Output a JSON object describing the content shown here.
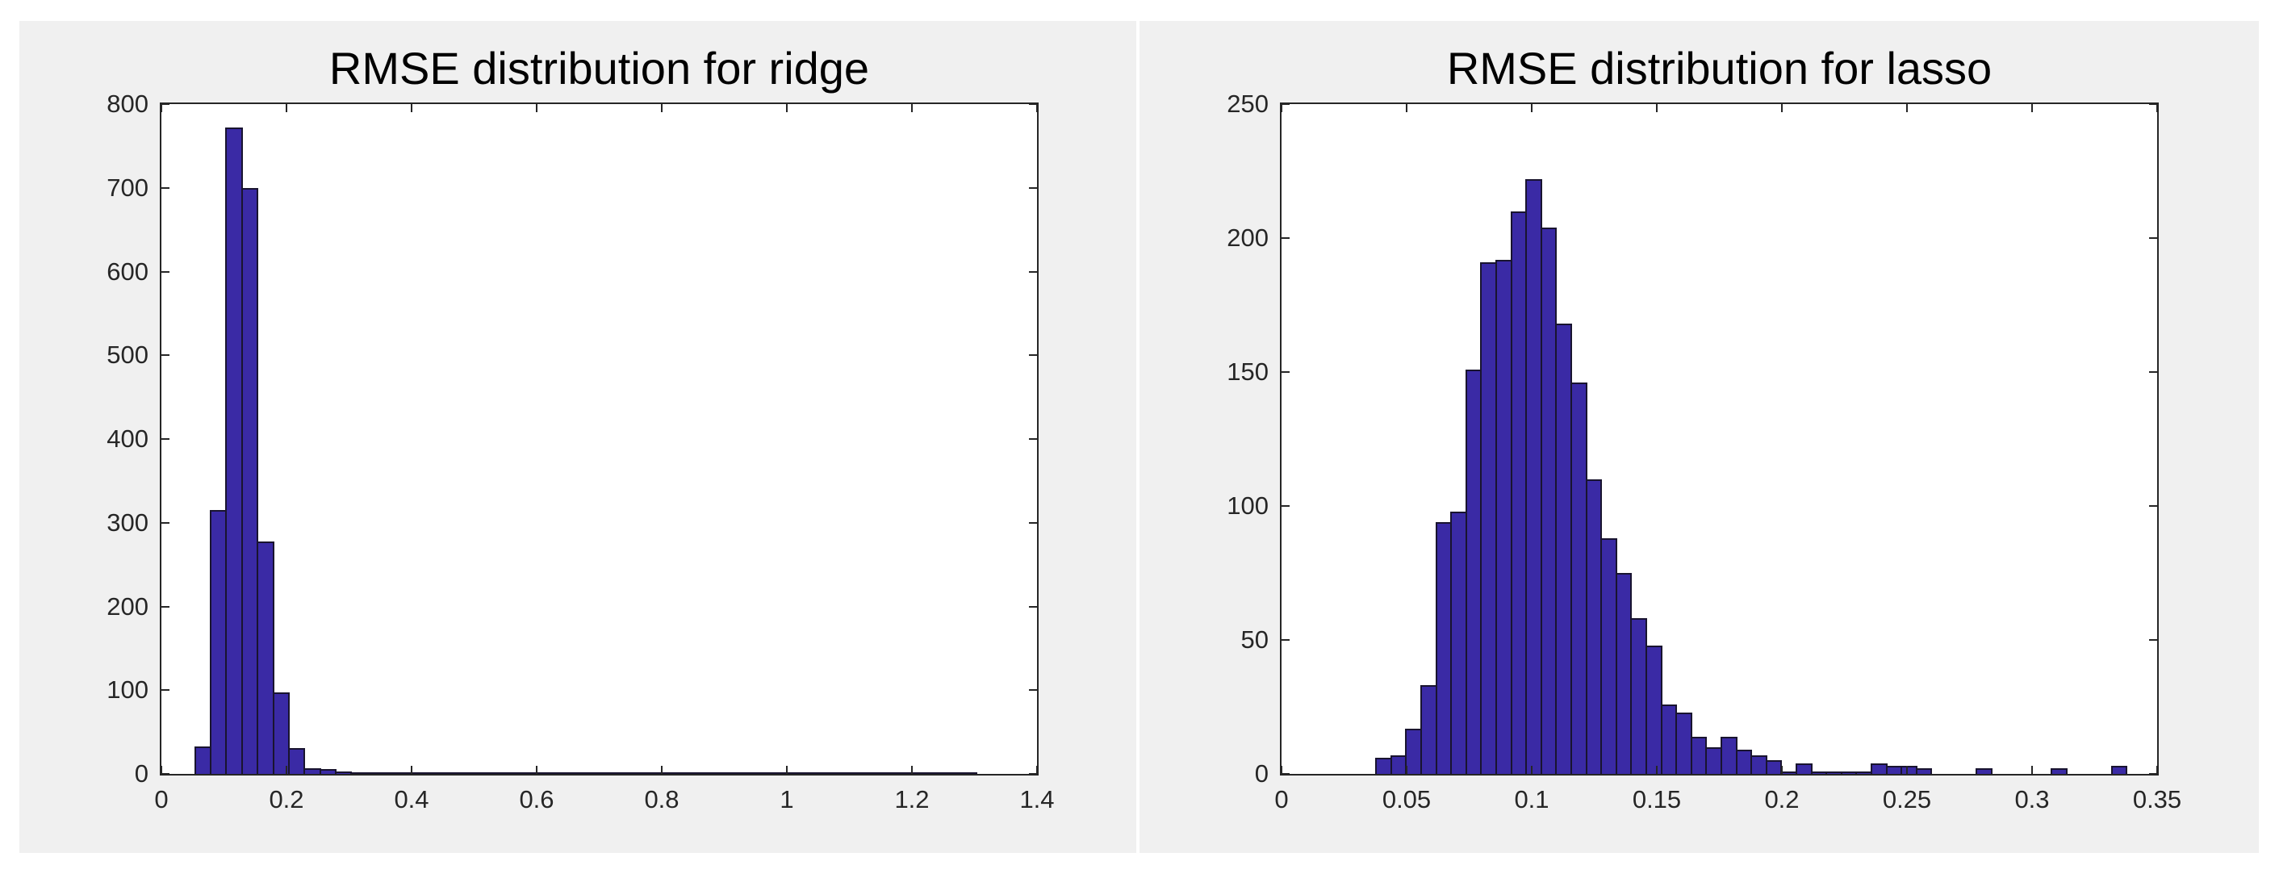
{
  "style": {
    "page_background": "#ffffff",
    "panel_background": "#f0f0f0",
    "plot_background": "#ffffff",
    "axis_color": "#262626",
    "tick_label_color": "#262626",
    "title_color": "#000000",
    "bar_fill": "#3a2aa5",
    "bar_edge": "#19142f"
  },
  "chart_data": [
    {
      "type": "bar",
      "subtype": "histogram",
      "title": "RMSE distribution for ridge",
      "xlabel": "",
      "ylabel": "",
      "xlim": [
        0,
        1.4
      ],
      "ylim": [
        0,
        800
      ],
      "grid": false,
      "legend": null,
      "xticks": [
        0,
        0.2,
        0.4,
        0.6,
        0.8,
        1,
        1.2,
        1.4
      ],
      "xtick_labels": [
        "0",
        "0.2",
        "0.4",
        "0.6",
        "0.8",
        "1",
        "1.2",
        "1.4"
      ],
      "yticks": [
        0,
        100,
        200,
        300,
        400,
        500,
        600,
        700,
        800
      ],
      "ytick_labels": [
        "0",
        "100",
        "200",
        "300",
        "400",
        "500",
        "600",
        "700",
        "800"
      ],
      "bin_start": 0.0525,
      "bin_width": 0.025,
      "counts": [
        33,
        315,
        772,
        700,
        278,
        97,
        31,
        7,
        6,
        3,
        2,
        1,
        1,
        1,
        1,
        1,
        1,
        1,
        1,
        1,
        1,
        1,
        1,
        1,
        1,
        1,
        1,
        1,
        1,
        1,
        1,
        1,
        1,
        1,
        1,
        1,
        1,
        1,
        1,
        1,
        1,
        1,
        1,
        1,
        1,
        1,
        1,
        1,
        1,
        1
      ]
    },
    {
      "type": "bar",
      "subtype": "histogram",
      "title": "RMSE distribution for lasso",
      "xlabel": "",
      "ylabel": "",
      "xlim": [
        0,
        0.35
      ],
      "ylim": [
        0,
        250
      ],
      "grid": false,
      "legend": null,
      "xticks": [
        0,
        0.05,
        0.1,
        0.15,
        0.2,
        0.25,
        0.3,
        0.35
      ],
      "xtick_labels": [
        "0",
        "0.05",
        "0.1",
        "0.15",
        "0.2",
        "0.25",
        "0.3",
        "0.35"
      ],
      "yticks": [
        0,
        50,
        100,
        150,
        200,
        250
      ],
      "ytick_labels": [
        "0",
        "50",
        "100",
        "150",
        "200",
        "250"
      ],
      "bin_start": 0.0375,
      "bin_width": 0.006,
      "counts": [
        6,
        7,
        17,
        33,
        94,
        98,
        151,
        191,
        192,
        210,
        222,
        204,
        168,
        146,
        110,
        88,
        75,
        58,
        48,
        26,
        23,
        14,
        10,
        14,
        9,
        7,
        5,
        1,
        4,
        1,
        1,
        1,
        1,
        4,
        3,
        3,
        2,
        0,
        0,
        0,
        2,
        0,
        0,
        0,
        0,
        2,
        0,
        0,
        0,
        3
      ]
    }
  ]
}
